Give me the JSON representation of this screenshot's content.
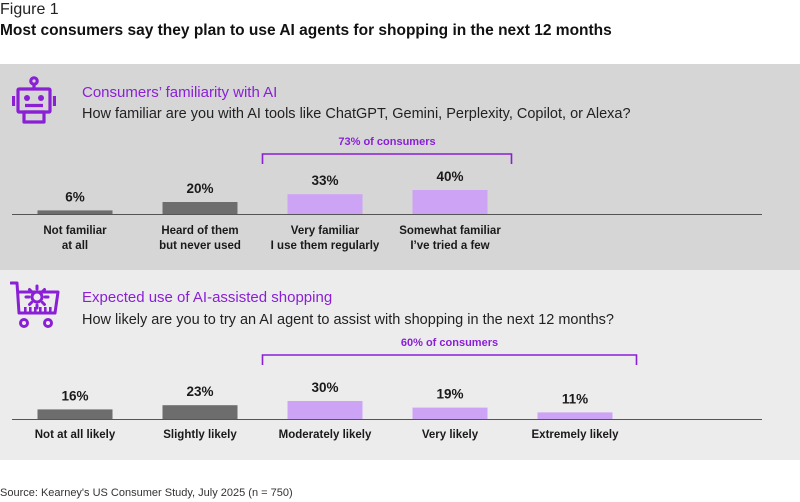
{
  "figure_label": "Figure 1",
  "title": "Most consumers say they plan to use AI agents for shopping in the next 12 months",
  "source": "Source: Kearney's US Consumer Study, July 2025 (n = 750)",
  "colors": {
    "accent": "#8a1fd6",
    "dark_bar": "#6d6d6d",
    "light_bar": "#cda3f5",
    "panel_top_bg": "#d6d6d6",
    "panel_bottom_bg": "#ececec"
  },
  "panels": [
    {
      "icon": "robot-icon",
      "heading": "Consumers’ familiarity with AI",
      "question": "How familiar are you with AI tools like ChatGPT, Gemini, Perplexity, Copilot, or Alexa?"
    },
    {
      "icon": "shopping-cart-gear-icon",
      "heading": "Expected use of AI-assisted shopping",
      "question": "How likely are you to try an AI agent to assist with shopping in the next 12 months?"
    }
  ],
  "chart_data": [
    {
      "type": "bar",
      "unit": "%",
      "categories": [
        [
          "Not familiar",
          "at all"
        ],
        [
          "Heard of them",
          "but never used"
        ],
        [
          "Very familiar",
          "I use them regularly"
        ],
        [
          "Somewhat familiar",
          "I’ve tried a few"
        ]
      ],
      "values": [
        6,
        20,
        33,
        40
      ],
      "highlight": [
        false,
        false,
        true,
        true
      ],
      "bracket": {
        "label": "73% of consumers",
        "from": 2,
        "to": 3
      }
    },
    {
      "type": "bar",
      "unit": "%",
      "categories": [
        [
          "Not at all likely"
        ],
        [
          "Slightly likely"
        ],
        [
          "Moderately likely"
        ],
        [
          "Very likely"
        ],
        [
          "Extremely likely"
        ]
      ],
      "values": [
        16,
        23,
        30,
        19,
        11
      ],
      "highlight": [
        false,
        false,
        true,
        true,
        true
      ],
      "bracket": {
        "label": "60% of consumers",
        "from": 2,
        "to": 4
      }
    }
  ]
}
